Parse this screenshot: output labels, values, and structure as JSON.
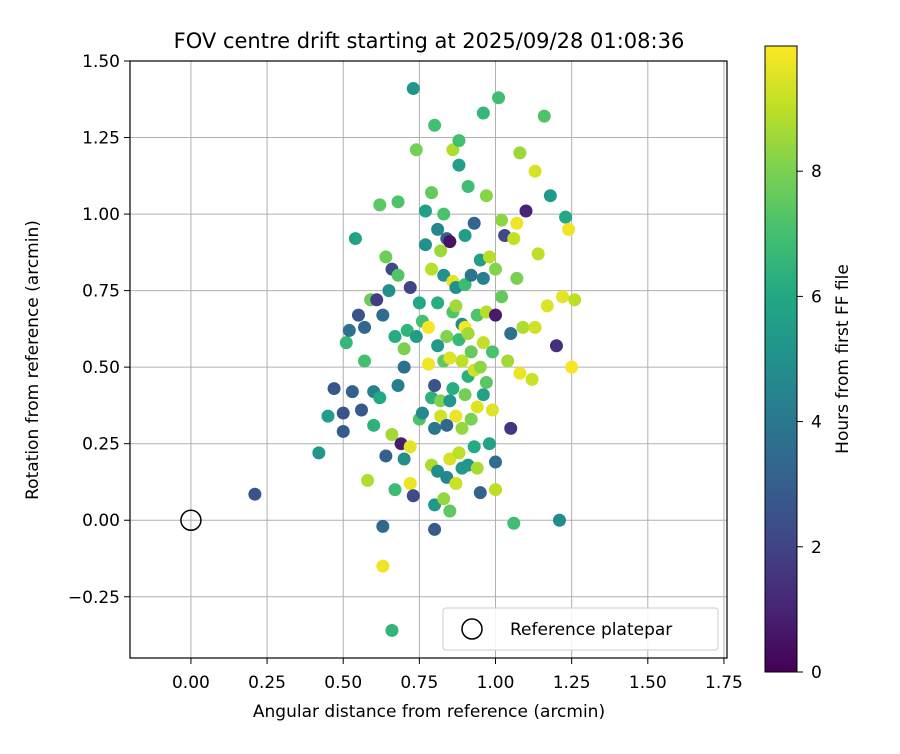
{
  "chart_data": {
    "type": "scatter",
    "title": "FOV centre drift starting at 2025/09/28 01:08:36",
    "xlabel": "Angular distance from reference (arcmin)",
    "ylabel": "Rotation from reference (arcmin)",
    "xlim": [
      -0.2,
      1.76
    ],
    "ylim": [
      -0.45,
      1.5
    ],
    "xticks": [
      0.0,
      0.25,
      0.5,
      0.75,
      1.0,
      1.25,
      1.5,
      1.75
    ],
    "xtick_labels": [
      "0.00",
      "0.25",
      "0.50",
      "0.75",
      "1.00",
      "1.25",
      "1.50",
      "1.75"
    ],
    "yticks": [
      -0.25,
      0.0,
      0.25,
      0.5,
      0.75,
      1.0,
      1.25,
      1.5
    ],
    "ytick_labels": [
      "−0.25",
      "0.00",
      "0.25",
      "0.50",
      "0.75",
      "1.00",
      "1.25",
      "1.50"
    ],
    "grid": true,
    "legend": {
      "placement": "lower-right",
      "entries": [
        "Reference platepar"
      ]
    },
    "reference_point": {
      "label": "Reference platepar",
      "x": 0.0,
      "y": 0.0
    },
    "colorbar": {
      "label": "Hours from first FF file",
      "range": [
        0,
        10
      ],
      "ticks": [
        0,
        2,
        4,
        6,
        8
      ],
      "tick_labels": [
        "0",
        "2",
        "4",
        "6",
        "8"
      ],
      "colormap": "viridis"
    },
    "series": [
      {
        "name": "FOV centre drift",
        "points": [
          {
            "x": 0.21,
            "y": 0.085,
            "c": 2.6
          },
          {
            "x": 0.42,
            "y": 0.22,
            "c": 5.3
          },
          {
            "x": 0.45,
            "y": 0.34,
            "c": 5.5
          },
          {
            "x": 0.47,
            "y": 0.43,
            "c": 2.7
          },
          {
            "x": 0.5,
            "y": 0.29,
            "c": 2.9
          },
          {
            "x": 0.5,
            "y": 0.35,
            "c": 2.5
          },
          {
            "x": 0.51,
            "y": 0.58,
            "c": 6.6
          },
          {
            "x": 0.52,
            "y": 0.62,
            "c": 3.8
          },
          {
            "x": 0.53,
            "y": 0.42,
            "c": 3.1
          },
          {
            "x": 0.54,
            "y": 0.92,
            "c": 5.7
          },
          {
            "x": 0.55,
            "y": 0.67,
            "c": 2.6
          },
          {
            "x": 0.56,
            "y": 0.36,
            "c": 2.8
          },
          {
            "x": 0.57,
            "y": 0.52,
            "c": 7.0
          },
          {
            "x": 0.57,
            "y": 0.63,
            "c": 3.3
          },
          {
            "x": 0.58,
            "y": 0.13,
            "c": 8.8
          },
          {
            "x": 0.59,
            "y": 0.72,
            "c": 7.7
          },
          {
            "x": 0.6,
            "y": 0.31,
            "c": 6.4
          },
          {
            "x": 0.6,
            "y": 0.42,
            "c": 4.3
          },
          {
            "x": 0.61,
            "y": 0.72,
            "c": 1.8
          },
          {
            "x": 0.62,
            "y": 0.4,
            "c": 6.0
          },
          {
            "x": 0.62,
            "y": 1.03,
            "c": 7.4
          },
          {
            "x": 0.63,
            "y": -0.15,
            "c": 9.8
          },
          {
            "x": 0.63,
            "y": -0.02,
            "c": 3.4
          },
          {
            "x": 0.63,
            "y": 0.67,
            "c": 3.5
          },
          {
            "x": 0.64,
            "y": 0.21,
            "c": 3.0
          },
          {
            "x": 0.64,
            "y": 0.86,
            "c": 7.8
          },
          {
            "x": 0.65,
            "y": 0.75,
            "c": 4.9
          },
          {
            "x": 0.66,
            "y": -0.36,
            "c": 6.5
          },
          {
            "x": 0.66,
            "y": 0.28,
            "c": 8.6
          },
          {
            "x": 0.66,
            "y": 0.82,
            "c": 2.2
          },
          {
            "x": 0.67,
            "y": 0.1,
            "c": 6.8
          },
          {
            "x": 0.67,
            "y": 0.6,
            "c": 6.1
          },
          {
            "x": 0.68,
            "y": 0.44,
            "c": 4.2
          },
          {
            "x": 0.68,
            "y": 0.8,
            "c": 7.3
          },
          {
            "x": 0.68,
            "y": 1.04,
            "c": 7.2
          },
          {
            "x": 0.69,
            "y": 0.25,
            "c": 0.8
          },
          {
            "x": 0.7,
            "y": 0.2,
            "c": 4.9
          },
          {
            "x": 0.7,
            "y": 0.5,
            "c": 3.7
          },
          {
            "x": 0.7,
            "y": 0.56,
            "c": 8.0
          },
          {
            "x": 0.71,
            "y": 0.62,
            "c": 6.5
          },
          {
            "x": 0.72,
            "y": 0.12,
            "c": 9.7
          },
          {
            "x": 0.72,
            "y": 0.24,
            "c": 9.6
          },
          {
            "x": 0.72,
            "y": 0.76,
            "c": 2.0
          },
          {
            "x": 0.73,
            "y": 0.08,
            "c": 2.3
          },
          {
            "x": 0.73,
            "y": 1.41,
            "c": 5.2
          },
          {
            "x": 0.74,
            "y": 0.6,
            "c": 5.5
          },
          {
            "x": 0.74,
            "y": 1.21,
            "c": 7.9
          },
          {
            "x": 0.75,
            "y": 0.33,
            "c": 7.2
          },
          {
            "x": 0.75,
            "y": 0.71,
            "c": 6.0
          },
          {
            "x": 0.76,
            "y": 0.35,
            "c": 4.7
          },
          {
            "x": 0.76,
            "y": 0.65,
            "c": 7.0
          },
          {
            "x": 0.77,
            "y": 0.9,
            "c": 5.0
          },
          {
            "x": 0.77,
            "y": 1.01,
            "c": 5.6
          },
          {
            "x": 0.78,
            "y": 0.51,
            "c": 9.8
          },
          {
            "x": 0.78,
            "y": 0.63,
            "c": 9.9
          },
          {
            "x": 0.79,
            "y": 0.18,
            "c": 8.7
          },
          {
            "x": 0.79,
            "y": 0.4,
            "c": 6.4
          },
          {
            "x": 0.79,
            "y": 0.82,
            "c": 8.9
          },
          {
            "x": 0.79,
            "y": 1.07,
            "c": 7.6
          },
          {
            "x": 0.8,
            "y": -0.03,
            "c": 2.8
          },
          {
            "x": 0.8,
            "y": 0.05,
            "c": 5.3
          },
          {
            "x": 0.8,
            "y": 0.3,
            "c": 3.9
          },
          {
            "x": 0.8,
            "y": 0.44,
            "c": 2.5
          },
          {
            "x": 0.8,
            "y": 1.29,
            "c": 7.0
          },
          {
            "x": 0.81,
            "y": 0.16,
            "c": 4.8
          },
          {
            "x": 0.81,
            "y": 0.57,
            "c": 5.4
          },
          {
            "x": 0.81,
            "y": 0.71,
            "c": 6.2
          },
          {
            "x": 0.81,
            "y": 0.95,
            "c": 4.6
          },
          {
            "x": 0.82,
            "y": 0.34,
            "c": 9.3
          },
          {
            "x": 0.82,
            "y": 0.39,
            "c": 8.1
          },
          {
            "x": 0.82,
            "y": 0.88,
            "c": 8.5
          },
          {
            "x": 0.83,
            "y": 0.07,
            "c": 8.4
          },
          {
            "x": 0.83,
            "y": 0.52,
            "c": 7.5
          },
          {
            "x": 0.83,
            "y": 0.8,
            "c": 5.1
          },
          {
            "x": 0.83,
            "y": 1.0,
            "c": 7.1
          },
          {
            "x": 0.84,
            "y": 0.14,
            "c": 4.5
          },
          {
            "x": 0.84,
            "y": 0.31,
            "c": 3.3
          },
          {
            "x": 0.84,
            "y": 0.6,
            "c": 8.1
          },
          {
            "x": 0.84,
            "y": 0.92,
            "c": 3.0
          },
          {
            "x": 0.85,
            "y": 0.03,
            "c": 7.5
          },
          {
            "x": 0.85,
            "y": 0.2,
            "c": 9.4
          },
          {
            "x": 0.85,
            "y": 0.39,
            "c": 5.3
          },
          {
            "x": 0.85,
            "y": 0.53,
            "c": 9.5
          },
          {
            "x": 0.85,
            "y": 0.91,
            "c": 0.5
          },
          {
            "x": 0.86,
            "y": 0.43,
            "c": 6.2
          },
          {
            "x": 0.86,
            "y": 0.68,
            "c": 7.3
          },
          {
            "x": 0.86,
            "y": 0.78,
            "c": 9.6
          },
          {
            "x": 0.86,
            "y": 1.21,
            "c": 8.8
          },
          {
            "x": 0.87,
            "y": 0.12,
            "c": 9.2
          },
          {
            "x": 0.87,
            "y": 0.34,
            "c": 9.7
          },
          {
            "x": 0.87,
            "y": 0.7,
            "c": 8.6
          },
          {
            "x": 0.87,
            "y": 0.76,
            "c": 4.9
          },
          {
            "x": 0.88,
            "y": 0.22,
            "c": 9.0
          },
          {
            "x": 0.88,
            "y": 0.59,
            "c": 6.7
          },
          {
            "x": 0.88,
            "y": 1.16,
            "c": 5.6
          },
          {
            "x": 0.88,
            "y": 1.24,
            "c": 7.0
          },
          {
            "x": 0.89,
            "y": 0.17,
            "c": 5.4
          },
          {
            "x": 0.89,
            "y": 0.3,
            "c": 8.4
          },
          {
            "x": 0.89,
            "y": 0.52,
            "c": 9.0
          },
          {
            "x": 0.89,
            "y": 0.64,
            "c": 4.7
          },
          {
            "x": 0.9,
            "y": 0.41,
            "c": 7.9
          },
          {
            "x": 0.9,
            "y": 0.63,
            "c": 9.9
          },
          {
            "x": 0.9,
            "y": 0.77,
            "c": 6.8
          },
          {
            "x": 0.9,
            "y": 0.93,
            "c": 5.5
          },
          {
            "x": 0.91,
            "y": 0.18,
            "c": 5.2
          },
          {
            "x": 0.91,
            "y": 0.47,
            "c": 6.3
          },
          {
            "x": 0.91,
            "y": 0.61,
            "c": 8.6
          },
          {
            "x": 0.91,
            "y": 1.09,
            "c": 6.9
          },
          {
            "x": 0.92,
            "y": 0.33,
            "c": 8.0
          },
          {
            "x": 0.92,
            "y": 0.55,
            "c": 7.6
          },
          {
            "x": 0.92,
            "y": 0.8,
            "c": 3.9
          },
          {
            "x": 0.93,
            "y": 0.24,
            "c": 6.1
          },
          {
            "x": 0.93,
            "y": 0.49,
            "c": 9.3
          },
          {
            "x": 0.93,
            "y": 0.97,
            "c": 3.2
          },
          {
            "x": 0.94,
            "y": 0.17,
            "c": 8.7
          },
          {
            "x": 0.94,
            "y": 0.37,
            "c": 9.5
          },
          {
            "x": 0.94,
            "y": 0.67,
            "c": 7.2
          },
          {
            "x": 0.95,
            "y": 0.09,
            "c": 3.1
          },
          {
            "x": 0.95,
            "y": 0.5,
            "c": 8.3
          },
          {
            "x": 0.95,
            "y": 0.85,
            "c": 5.6
          },
          {
            "x": 0.96,
            "y": 0.41,
            "c": 5.7
          },
          {
            "x": 0.96,
            "y": 0.58,
            "c": 9.1
          },
          {
            "x": 0.96,
            "y": 0.79,
            "c": 4.3
          },
          {
            "x": 0.96,
            "y": 1.33,
            "c": 6.6
          },
          {
            "x": 0.97,
            "y": 0.45,
            "c": 7.4
          },
          {
            "x": 0.97,
            "y": 0.68,
            "c": 8.9
          },
          {
            "x": 0.97,
            "y": 1.06,
            "c": 8.2
          },
          {
            "x": 0.98,
            "y": 0.25,
            "c": 5.8
          },
          {
            "x": 0.98,
            "y": 0.86,
            "c": 8.9
          },
          {
            "x": 0.99,
            "y": 0.36,
            "c": 9.5
          },
          {
            "x": 0.99,
            "y": 0.55,
            "c": 7.1
          },
          {
            "x": 1.0,
            "y": 0.1,
            "c": 9.0
          },
          {
            "x": 1.0,
            "y": 0.19,
            "c": 3.5
          },
          {
            "x": 1.0,
            "y": 0.67,
            "c": 0.7
          },
          {
            "x": 1.0,
            "y": 0.82,
            "c": 8.1
          },
          {
            "x": 1.01,
            "y": 1.38,
            "c": 6.9
          },
          {
            "x": 1.02,
            "y": 0.73,
            "c": 7.6
          },
          {
            "x": 1.02,
            "y": 0.98,
            "c": 8.3
          },
          {
            "x": 1.03,
            "y": 0.93,
            "c": 2.2
          },
          {
            "x": 1.04,
            "y": 0.52,
            "c": 8.6
          },
          {
            "x": 1.05,
            "y": 0.3,
            "c": 1.5
          },
          {
            "x": 1.05,
            "y": 0.61,
            "c": 3.7
          },
          {
            "x": 1.06,
            "y": -0.01,
            "c": 6.9
          },
          {
            "x": 1.06,
            "y": 0.92,
            "c": 9.1
          },
          {
            "x": 1.07,
            "y": 0.79,
            "c": 8.0
          },
          {
            "x": 1.07,
            "y": 0.97,
            "c": 9.8
          },
          {
            "x": 1.08,
            "y": 0.48,
            "c": 9.7
          },
          {
            "x": 1.08,
            "y": 1.2,
            "c": 8.5
          },
          {
            "x": 1.09,
            "y": 0.63,
            "c": 8.8
          },
          {
            "x": 1.1,
            "y": 1.01,
            "c": 1.0
          },
          {
            "x": 1.12,
            "y": 0.46,
            "c": 9.2
          },
          {
            "x": 1.13,
            "y": 0.63,
            "c": 9.3
          },
          {
            "x": 1.13,
            "y": 1.14,
            "c": 9.4
          },
          {
            "x": 1.14,
            "y": 0.87,
            "c": 9.0
          },
          {
            "x": 1.16,
            "y": 1.32,
            "c": 7.2
          },
          {
            "x": 1.17,
            "y": 0.7,
            "c": 9.5
          },
          {
            "x": 1.18,
            "y": 1.06,
            "c": 5.4
          },
          {
            "x": 1.2,
            "y": 0.57,
            "c": 1.3
          },
          {
            "x": 1.21,
            "y": 0.0,
            "c": 4.8
          },
          {
            "x": 1.22,
            "y": 0.73,
            "c": 9.6
          },
          {
            "x": 1.23,
            "y": 0.99,
            "c": 6.0
          },
          {
            "x": 1.24,
            "y": 0.95,
            "c": 9.8
          },
          {
            "x": 1.25,
            "y": 0.5,
            "c": 9.9
          },
          {
            "x": 1.26,
            "y": 0.72,
            "c": 9.0
          }
        ]
      }
    ]
  }
}
